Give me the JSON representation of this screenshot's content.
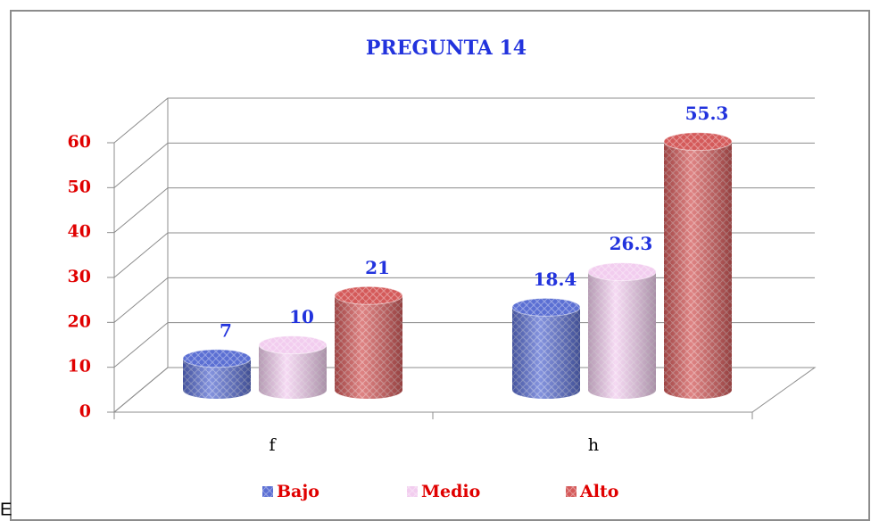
{
  "chart_data": {
    "type": "bar3d",
    "title": "PREGUNTA 14",
    "categories": [
      "f",
      "h"
    ],
    "series": [
      {
        "name": "Bajo",
        "color": "#5b6fd3",
        "values": [
          7,
          18.4
        ]
      },
      {
        "name": "Medio",
        "color": "#f2cdef",
        "values": [
          10,
          26.3
        ]
      },
      {
        "name": "Alto",
        "color": "#d45a5a",
        "values": [
          21,
          55.3
        ]
      }
    ],
    "ylim": [
      0,
      60
    ],
    "yticks": [
      0,
      10,
      20,
      30,
      40,
      50,
      60
    ],
    "grid": true,
    "legend": "bottom"
  },
  "stray_text": "E"
}
